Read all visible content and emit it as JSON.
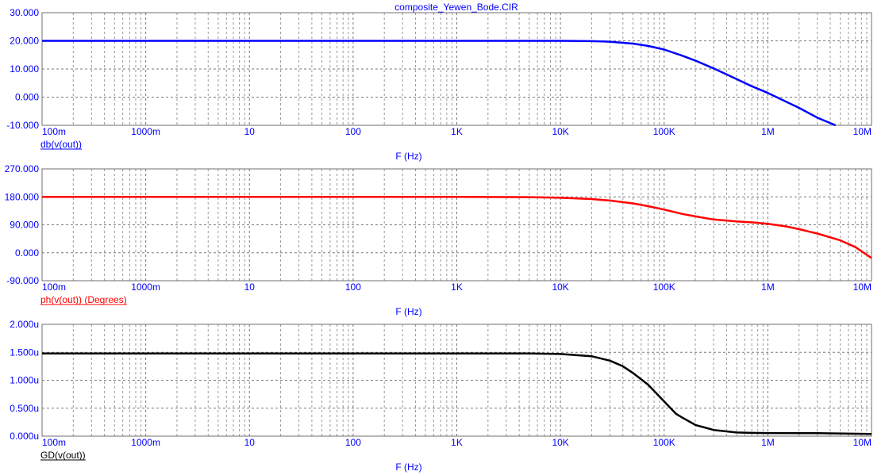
{
  "title": "composite_Yewen_Bode.CIR",
  "chart_data": [
    {
      "type": "line",
      "trace_label": "db(v(out))",
      "color": "#0000ff",
      "xlabel": "F (Hz)",
      "xscale": "log",
      "xlim": [
        0.1,
        10000000
      ],
      "x_tick_labels": [
        "100m",
        "1000m",
        "10",
        "100",
        "1K",
        "10K",
        "100K",
        "1M",
        "10M"
      ],
      "ylim": [
        -10,
        30
      ],
      "y_ticks": [
        30,
        20,
        10,
        0,
        -10
      ],
      "y_tick_labels": [
        "30.000",
        "20.000",
        "10.000",
        "0.000",
        "-10.000"
      ],
      "grid": true,
      "series": [
        {
          "x": [
            0.1,
            1000,
            10000,
            20000,
            30000,
            50000,
            70000,
            100000,
            150000,
            200000,
            300000,
            500000,
            700000,
            1000000,
            1500000,
            2000000,
            3000000,
            4500000
          ],
          "y": [
            20,
            20,
            20,
            19.9,
            19.7,
            19.0,
            18.2,
            16.9,
            14.7,
            13.0,
            10.2,
            6.4,
            3.9,
            1.5,
            -1.6,
            -3.8,
            -7.3,
            -10
          ]
        }
      ]
    },
    {
      "type": "line",
      "trace_label": "ph(v(out)) (Degrees)",
      "color": "#ff0000",
      "xlabel": "F (Hz)",
      "xscale": "log",
      "xlim": [
        0.1,
        10000000
      ],
      "x_tick_labels": [
        "100m",
        "1000m",
        "10",
        "100",
        "1K",
        "10K",
        "100K",
        "1M",
        "10M"
      ],
      "ylim": [
        -90,
        270
      ],
      "y_ticks": [
        270,
        180,
        90,
        0,
        -90
      ],
      "y_tick_labels": [
        "270.000",
        "180.000",
        "90.000",
        "0.000",
        "-90.000"
      ],
      "grid": true,
      "series": [
        {
          "x": [
            0.1,
            1000,
            5000,
            10000,
            20000,
            30000,
            50000,
            70000,
            100000,
            150000,
            200000,
            300000,
            500000,
            700000,
            1000000,
            1500000,
            2000000,
            3000000,
            5000000,
            7000000,
            10000000
          ],
          "y": [
            180,
            180,
            179,
            177,
            173,
            168,
            159,
            150,
            139,
            125,
            117,
            107,
            101,
            98,
            93,
            85,
            76,
            62,
            40,
            18,
            -17
          ]
        }
      ]
    },
    {
      "type": "line",
      "trace_label": "GD(v(out))",
      "color": "#000000",
      "xlabel": "F (Hz)",
      "xscale": "log",
      "xlim": [
        0.1,
        10000000
      ],
      "x_tick_labels": [
        "100m",
        "1000m",
        "10",
        "100",
        "1K",
        "10K",
        "100K",
        "1M",
        "10M"
      ],
      "ylim": [
        0,
        2.0
      ],
      "y_ticks": [
        2.0,
        1.5,
        1.0,
        0.5,
        0
      ],
      "y_tick_labels": [
        "2.000u",
        "1.500u",
        "1.000u",
        "0.500u",
        "0.000u"
      ],
      "grid": true,
      "series": [
        {
          "x": [
            0.1,
            1000,
            5000,
            10000,
            20000,
            30000,
            40000,
            50000,
            70000,
            100000,
            130000,
            150000,
            200000,
            300000,
            500000,
            700000,
            1000000,
            3000000,
            10000000
          ],
          "y": [
            1.48,
            1.48,
            1.48,
            1.47,
            1.43,
            1.35,
            1.25,
            1.13,
            0.92,
            0.62,
            0.4,
            0.33,
            0.2,
            0.11,
            0.065,
            0.058,
            0.055,
            0.052,
            0.04
          ]
        }
      ]
    }
  ]
}
